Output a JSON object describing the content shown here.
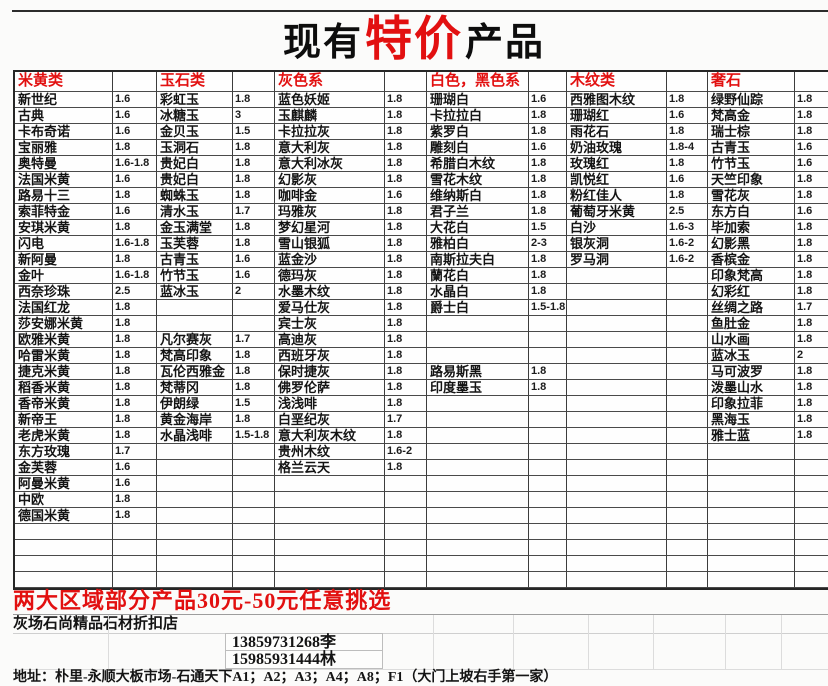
{
  "title": {
    "prefix": "现有",
    "highlight": "特价",
    "suffix": "产品"
  },
  "colors": {
    "accent_red": "#e21010",
    "text_black": "#141414",
    "grid_dark": "#3d3d3d",
    "grid_light": "#cfcfcf"
  },
  "table": {
    "row_count": 31,
    "groups": [
      {
        "header": "米黄类",
        "rows": [
          [
            "新世纪",
            "1.6"
          ],
          [
            "古典",
            "1.6"
          ],
          [
            "卡布奇诺",
            "1.6"
          ],
          [
            "宝丽雅",
            "1.8"
          ],
          [
            "奥特曼",
            "1.6-1.8"
          ],
          [
            "法国米黄",
            "1.6"
          ],
          [
            "路易十三",
            "1.8"
          ],
          [
            "索菲特金",
            "1.6"
          ],
          [
            "安琪米黄",
            "1.8"
          ],
          [
            "闪电",
            "1.6-1.8"
          ],
          [
            "新阿曼",
            "1.8"
          ],
          [
            "金叶",
            "1.6-1.8"
          ],
          [
            "西奈珍珠",
            "2.5"
          ],
          [
            "法国红龙",
            "1.8"
          ],
          [
            "莎安娜米黄",
            "1.8"
          ],
          [
            "欧雅米黄",
            "1.8"
          ],
          [
            "哈雷米黄",
            "1.8"
          ],
          [
            "捷克米黄",
            "1.8"
          ],
          [
            "稻香米黄",
            "1.8"
          ],
          [
            "香帝米黄",
            "1.8"
          ],
          [
            "新帝王",
            "1.8"
          ],
          [
            "老虎米黄",
            "1.8"
          ],
          [
            "东方玫瑰",
            "1.7"
          ],
          [
            "金芙蓉",
            "1.6"
          ],
          [
            "阿曼米黄",
            "1.6"
          ],
          [
            "中欧",
            "1.8"
          ],
          [
            "德国米黄",
            "1.8"
          ]
        ]
      },
      {
        "header": "玉石类",
        "rows": [
          [
            "彩虹玉",
            "1.8"
          ],
          [
            "冰糖玉",
            "3"
          ],
          [
            "金贝玉",
            "1.5"
          ],
          [
            "玉洞石",
            "1.8"
          ],
          [
            "贵妃白",
            "1.8"
          ],
          [
            "贵妃白",
            "1.8"
          ],
          [
            "蜘蛛玉",
            "1.8"
          ],
          [
            "清水玉",
            "1.7"
          ],
          [
            "金玉满堂",
            "1.8"
          ],
          [
            "玉芙蓉",
            "1.8"
          ],
          [
            "古青玉",
            "1.6"
          ],
          [
            "竹节玉",
            "1.6"
          ],
          [
            "蓝冰玉",
            "2"
          ],
          [
            "",
            ""
          ],
          [
            "",
            ""
          ],
          [
            "凡尔赛灰",
            "1.7"
          ],
          [
            "梵高印象",
            "1.8"
          ],
          [
            "瓦伦西雅金",
            "1.8"
          ],
          [
            "梵蒂冈",
            "1.8"
          ],
          [
            "伊朗绿",
            "1.5"
          ],
          [
            "黄金海岸",
            "1.8"
          ],
          [
            "水晶浅啡",
            "1.5-1.8"
          ]
        ]
      },
      {
        "header": "灰色系",
        "rows": [
          [
            "蓝色妖姬",
            "1.8"
          ],
          [
            "玉麒麟",
            "1.8"
          ],
          [
            "卡拉拉灰",
            "1.8"
          ],
          [
            "意大利灰",
            "1.8"
          ],
          [
            "意大利冰灰",
            "1.8"
          ],
          [
            "幻影灰",
            "1.8"
          ],
          [
            "咖啡金",
            "1.6"
          ],
          [
            "玛雅灰",
            "1.8"
          ],
          [
            "梦幻星河",
            "1.8"
          ],
          [
            "雪山银狐",
            "1.8"
          ],
          [
            "蓝金沙",
            "1.8"
          ],
          [
            "德玛灰",
            "1.8"
          ],
          [
            "水墨木纹",
            "1.8"
          ],
          [
            "爱马仕灰",
            "1.8"
          ],
          [
            "宾士灰",
            "1.8"
          ],
          [
            "高迪灰",
            "1.8"
          ],
          [
            "西班牙灰",
            "1.8"
          ],
          [
            "保时捷灰",
            "1.8"
          ],
          [
            "佛罗伦萨",
            "1.8"
          ],
          [
            "浅浅啡",
            "1.8"
          ],
          [
            "白垩纪灰",
            "1.7"
          ],
          [
            "意大利灰木纹",
            "1.8"
          ],
          [
            "贵州木纹",
            "1.6-2"
          ],
          [
            "格兰云天",
            "1.8"
          ]
        ]
      },
      {
        "header": "白色，黑色系",
        "rows": [
          [
            "珊瑚白",
            "1.6"
          ],
          [
            "卡拉拉白",
            "1.8"
          ],
          [
            "紫罗白",
            "1.8"
          ],
          [
            "雕刻白",
            "1.6"
          ],
          [
            "希腊白木纹",
            "1.8"
          ],
          [
            "雪花木纹",
            "1.8"
          ],
          [
            "维纳斯白",
            "1.8"
          ],
          [
            "君子兰",
            "1.8"
          ],
          [
            "大花白",
            "1.5"
          ],
          [
            "雅柏白",
            "2-3"
          ],
          [
            "南斯拉夫白",
            "1.8"
          ],
          [
            "蘭花白",
            "1.8"
          ],
          [
            "水晶白",
            "1.8"
          ],
          [
            "爵士白",
            "1.5-1.8"
          ],
          [
            "",
            ""
          ],
          [
            "",
            ""
          ],
          [
            "",
            ""
          ],
          [
            "路易斯黑",
            "1.8"
          ],
          [
            "印度墨玉",
            "1.8"
          ]
        ]
      },
      {
        "header": "木纹类",
        "rows": [
          [
            "西雅图木纹",
            "1.8"
          ],
          [
            "珊瑚红",
            "1.6"
          ],
          [
            "雨花石",
            "1.8"
          ],
          [
            "奶油玫瑰",
            "1.8-4"
          ],
          [
            "玫瑰红",
            "1.8"
          ],
          [
            "凯悦红",
            "1.6"
          ],
          [
            "粉红佳人",
            "1.8"
          ],
          [
            "葡萄牙米黄",
            "2.5"
          ],
          [
            "白沙",
            "1.6-3"
          ],
          [
            "银灰洞",
            "1.6-2"
          ],
          [
            "罗马洞",
            "1.6-2"
          ]
        ]
      },
      {
        "header": "奢石",
        "rows": [
          [
            "绿野仙踪",
            "1.8"
          ],
          [
            "梵高金",
            "1.8"
          ],
          [
            "瑞士棕",
            "1.8"
          ],
          [
            "古青玉",
            "1.6"
          ],
          [
            "竹节玉",
            "1.6"
          ],
          [
            "天竺印象",
            "1.8"
          ],
          [
            "雪花灰",
            "1.8"
          ],
          [
            "东方白",
            "1.6"
          ],
          [
            "毕加索",
            "1.8"
          ],
          [
            "幻影黑",
            "1.8"
          ],
          [
            "香槟金",
            "1.8"
          ],
          [
            "印象梵高",
            "1.8"
          ],
          [
            "幻彩红",
            "1.8"
          ],
          [
            "丝绸之路",
            "1.7"
          ],
          [
            "鱼肚金",
            "1.8"
          ],
          [
            "山水画",
            "1.8"
          ],
          [
            "蓝冰玉",
            "2"
          ],
          [
            "马可波罗",
            "1.8"
          ],
          [
            "泼墨山水",
            "1.8"
          ],
          [
            "印象拉菲",
            "1.8"
          ],
          [
            "黑海玉",
            "1.8"
          ],
          [
            "雅士蓝",
            "1.8"
          ]
        ]
      }
    ]
  },
  "footer": {
    "promo": "两大区域部分产品30元-50元任意挑选",
    "shop_name": "灰场石尚精品石材折扣店",
    "phone_li": "13859731268李",
    "phone_lin": "15985931444林",
    "address": "地址：朴里-永顺大板市场-石通天下A1；A2；A3；A4；A8；F1（大门上坡右手第一家）"
  }
}
